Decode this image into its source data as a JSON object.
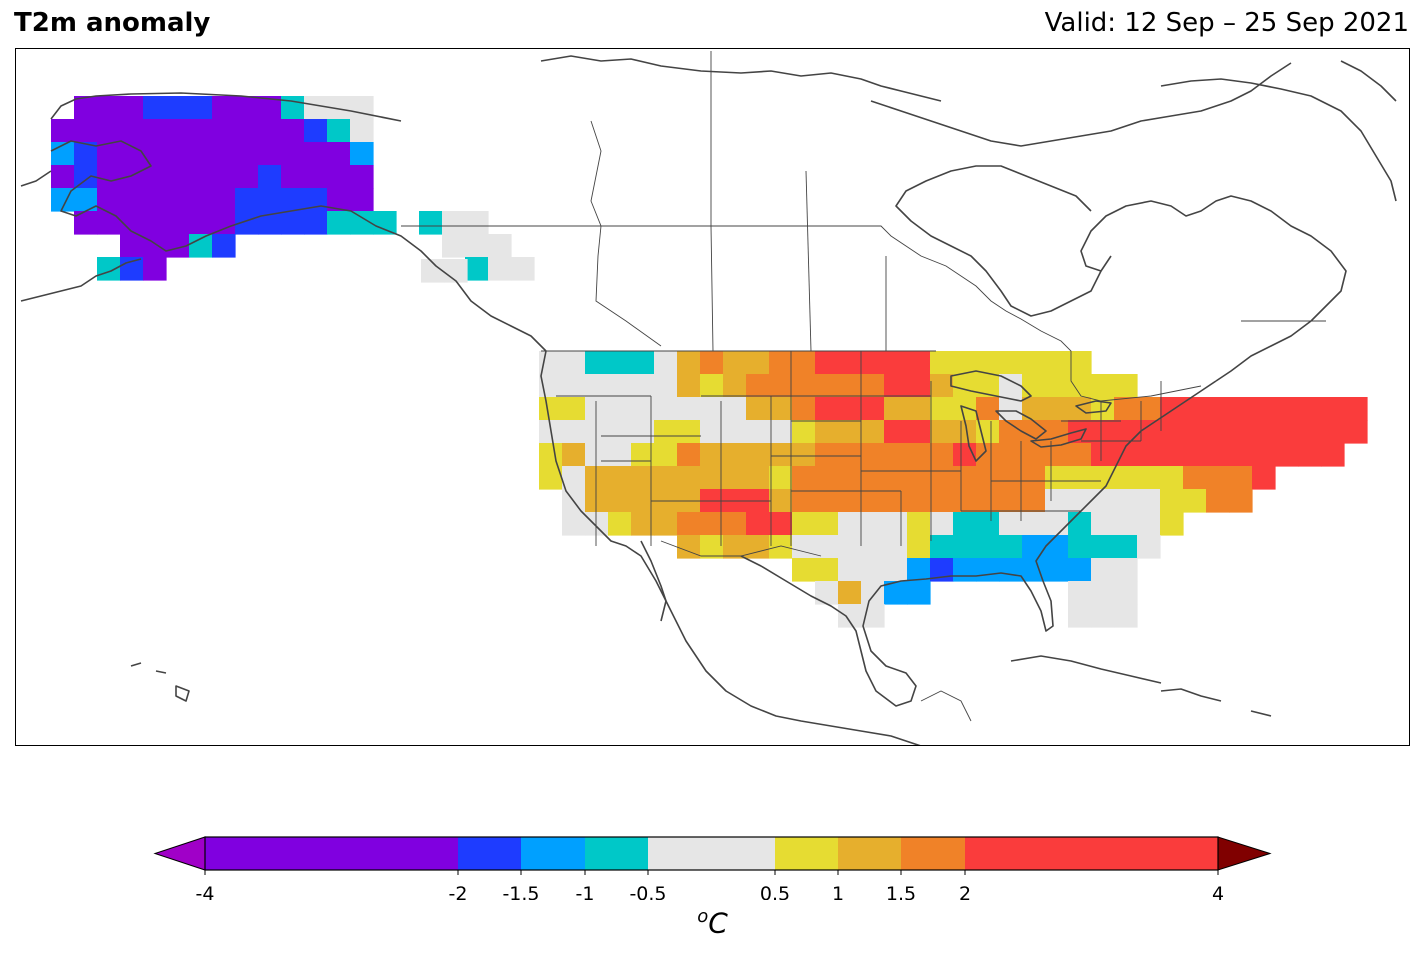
{
  "header": {
    "title": "T2m anomaly",
    "valid": "Valid: 12 Sep – 25 Sep 2021"
  },
  "colorbar": {
    "unit_sup": "o",
    "unit_main": "C",
    "ticks": [
      "-4",
      "-2",
      "-1.5",
      "-1",
      "-0.5",
      "0.5",
      "1",
      "1.5",
      "2",
      "4"
    ],
    "bins": [
      {
        "from": -4,
        "to": -2,
        "color": "#8000e0"
      },
      {
        "from": -2,
        "to": -1.5,
        "color": "#1e3cff"
      },
      {
        "from": -1.5,
        "to": -1,
        "color": "#00a0ff"
      },
      {
        "from": -1,
        "to": -0.5,
        "color": "#00c8c8"
      },
      {
        "from": -0.5,
        "to": 0.5,
        "color": "#e6e6e6"
      },
      {
        "from": 0.5,
        "to": 1,
        "color": "#e6dc32"
      },
      {
        "from": 1,
        "to": 1.5,
        "color": "#e6af2d"
      },
      {
        "from": 1.5,
        "to": 2,
        "color": "#f08228"
      },
      {
        "from": 2,
        "to": 4,
        "color": "#fa3c3c"
      }
    ],
    "under_color": "#a000c8",
    "over_color": "#800000"
  },
  "map": {
    "projection": "Lambert Conformal",
    "region": "North America",
    "coastline_color": "#444444",
    "anomaly_regions": [
      {
        "region": "Alaska interior",
        "category": "-4 to -2"
      },
      {
        "region": "Alaska south coast",
        "category": "-2 to -1.5"
      },
      {
        "region": "Northern Rockies",
        "category": "-1 to -0.5"
      },
      {
        "region": "Great Plains / Upper Midwest",
        "category": "2 to 4"
      },
      {
        "region": "Northeast US",
        "category": "2 to 4"
      },
      {
        "region": "Southwest US",
        "category": "1 to 1.5"
      },
      {
        "region": "Gulf Coast",
        "category": "-1.5 to -1"
      }
    ]
  }
}
